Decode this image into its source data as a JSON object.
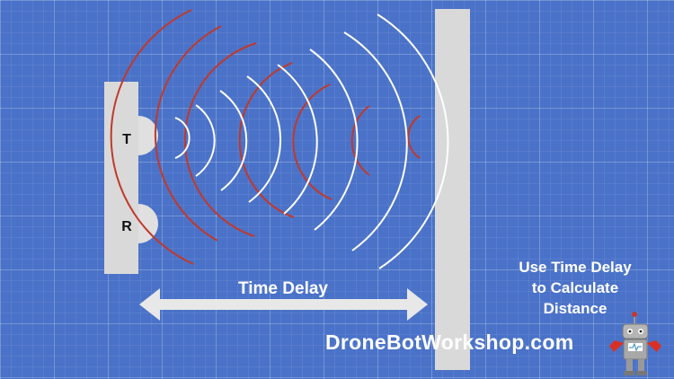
{
  "diagram": {
    "transmitter_label": "T",
    "receiver_label": "R",
    "arrow_label": "Time Delay",
    "caption_lines": [
      "Use Time Delay",
      "to Calculate",
      "Distance"
    ],
    "brand_text": "DroneBotWorkshop.com",
    "colors": {
      "background": "#4a72c8",
      "panel": "#d9d9d9",
      "wave_red": "#c0392b",
      "wave_white": "#ffffff",
      "text_white": "#ffffff",
      "text_dark": "#111111"
    },
    "icons": {
      "robot": "robot-mascot-icon",
      "arrow": "double-headed-arrow-icon"
    }
  }
}
